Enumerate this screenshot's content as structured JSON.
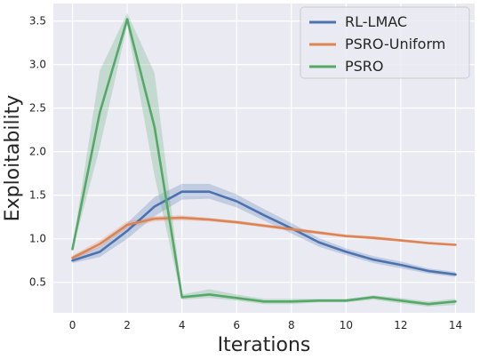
{
  "chart_data": {
    "type": "line",
    "xlabel": "Iterations",
    "ylabel": "Exploitability",
    "xlim": [
      -0.7,
      14.7
    ],
    "ylim": [
      0.15,
      3.7
    ],
    "xticks": [
      0,
      2,
      4,
      6,
      8,
      10,
      12,
      14
    ],
    "yticks": [
      0.5,
      1.0,
      1.5,
      2.0,
      2.5,
      3.0,
      3.5
    ],
    "grid": true,
    "background": "#eaeaf2",
    "legend_position": "top-right",
    "x": [
      0,
      1,
      2,
      3,
      4,
      5,
      6,
      7,
      8,
      9,
      10,
      11,
      12,
      13,
      14
    ],
    "series": [
      {
        "name": "RL-LMAC",
        "color": "#4c72b0",
        "values": [
          0.75,
          0.85,
          1.09,
          1.37,
          1.54,
          1.54,
          1.43,
          1.27,
          1.12,
          0.96,
          0.85,
          0.76,
          0.7,
          0.63,
          0.59
        ],
        "lower": [
          0.72,
          0.79,
          1.0,
          1.26,
          1.45,
          1.46,
          1.36,
          1.21,
          1.06,
          0.91,
          0.81,
          0.72,
          0.66,
          0.6,
          0.56
        ],
        "upper": [
          0.78,
          0.91,
          1.18,
          1.48,
          1.63,
          1.63,
          1.51,
          1.34,
          1.18,
          1.01,
          0.89,
          0.8,
          0.74,
          0.66,
          0.62
        ]
      },
      {
        "name": "PSRO-Uniform",
        "color": "#dd8452",
        "values": [
          0.78,
          0.94,
          1.16,
          1.23,
          1.24,
          1.22,
          1.19,
          1.15,
          1.11,
          1.07,
          1.03,
          1.01,
          0.98,
          0.95,
          0.93
        ],
        "lower": [
          0.75,
          0.9,
          1.12,
          1.2,
          1.21,
          1.2,
          1.17,
          1.13,
          1.09,
          1.05,
          1.02,
          0.99,
          0.97,
          0.94,
          0.92
        ],
        "upper": [
          0.81,
          0.98,
          1.2,
          1.26,
          1.27,
          1.24,
          1.21,
          1.17,
          1.13,
          1.09,
          1.05,
          1.03,
          1.0,
          0.96,
          0.94
        ]
      },
      {
        "name": "PSRO",
        "color": "#55a868",
        "values": [
          0.88,
          2.45,
          3.52,
          2.28,
          0.33,
          0.36,
          0.32,
          0.28,
          0.28,
          0.29,
          0.29,
          0.33,
          0.29,
          0.25,
          0.28
        ],
        "lower": [
          0.86,
          2.05,
          3.45,
          1.72,
          0.3,
          0.32,
          0.29,
          0.25,
          0.25,
          0.27,
          0.27,
          0.3,
          0.26,
          0.22,
          0.24
        ],
        "upper": [
          0.9,
          2.93,
          3.59,
          2.9,
          0.36,
          0.42,
          0.36,
          0.31,
          0.31,
          0.31,
          0.31,
          0.35,
          0.32,
          0.28,
          0.31
        ]
      }
    ]
  }
}
